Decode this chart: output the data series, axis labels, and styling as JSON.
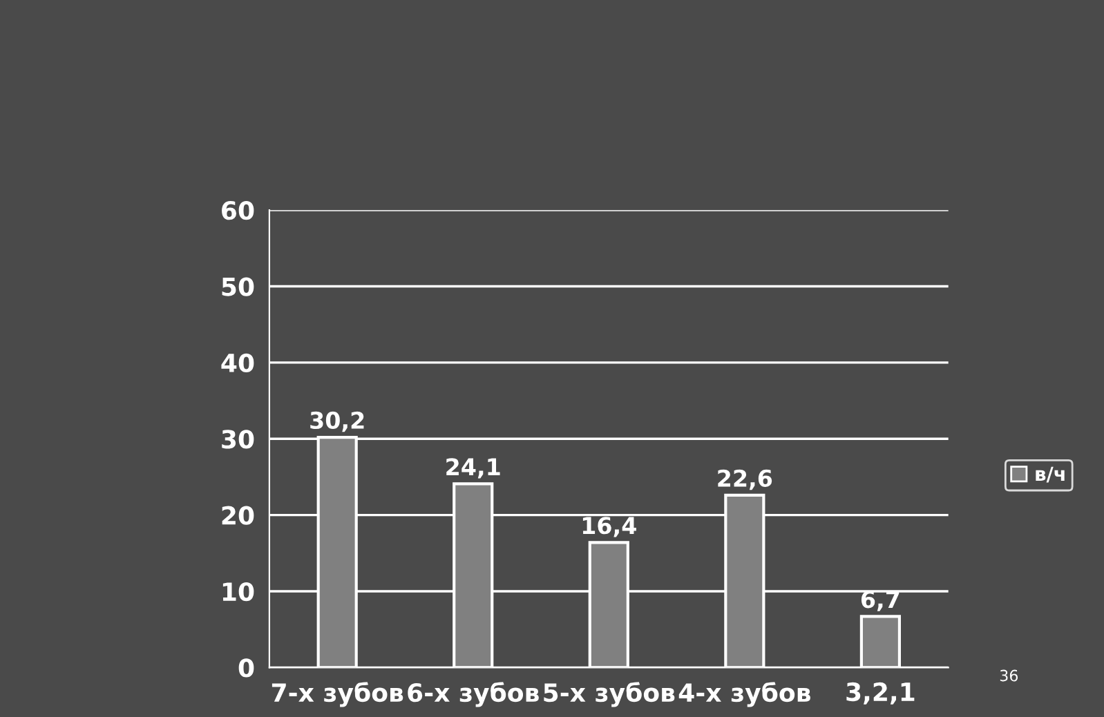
{
  "chart_data": {
    "type": "bar",
    "categories": [
      "7-х зубов",
      "6-х зубов",
      "5-х зубов",
      "4-х зубов",
      "3,2,1"
    ],
    "series": [
      {
        "name": "в/ч",
        "color": "#808080",
        "values": [
          30.2,
          24.1,
          16.4,
          22.6,
          6.7
        ],
        "value_labels": [
          "30,2",
          "24,1",
          "16,4",
          "22,6",
          "6,7"
        ]
      }
    ],
    "ylim": [
      0,
      60
    ],
    "yticks": [
      0,
      10,
      20,
      30,
      40,
      50,
      60
    ],
    "grid": "y",
    "legend": "right",
    "annotations": [
      "36"
    ]
  }
}
